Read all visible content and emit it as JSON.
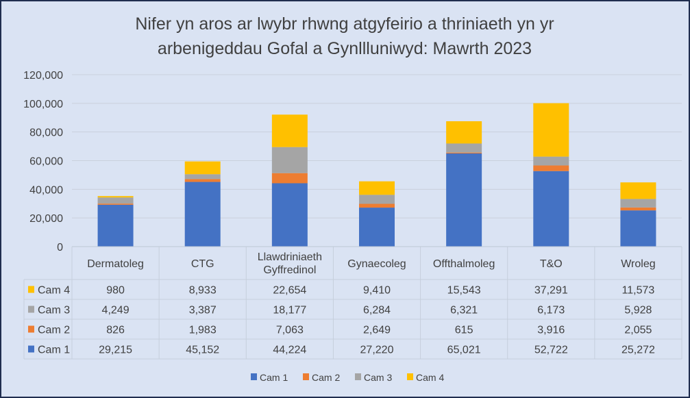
{
  "chart_data": {
    "type": "bar",
    "stacked": true,
    "title_lines": [
      "Nifer yn aros ar lwybr rhwng atgyfeirio a thriniaeth yn yr",
      "arbenigeddau Gofal a Gynllluniwyd: Mawrth 2023"
    ],
    "categories": [
      [
        "Dermatoleg"
      ],
      [
        "CTG"
      ],
      [
        "Llawdriniaeth",
        "Gyffredinol"
      ],
      [
        "Gynaecoleg"
      ],
      [
        "Offthalmoleg"
      ],
      [
        "T&O"
      ],
      [
        "Wroleg"
      ]
    ],
    "yticks": [
      "0",
      "20,000",
      "40,000",
      "60,000",
      "80,000",
      "100,000",
      "120,000"
    ],
    "ylim": [
      0,
      120000
    ],
    "grid": true,
    "legend_position": "bottom",
    "series": [
      {
        "name": "Cam 1",
        "color": "#4472c4",
        "values": [
          29215,
          45152,
          44224,
          27220,
          65021,
          52722,
          25272
        ],
        "labels": [
          "29,215",
          "45,152",
          "44,224",
          "27,220",
          "65,021",
          "52,722",
          "25,272"
        ]
      },
      {
        "name": "Cam 2",
        "color": "#ed7d31",
        "values": [
          826,
          1983,
          7063,
          2649,
          615,
          3916,
          2055
        ],
        "labels": [
          "826",
          "1,983",
          "7,063",
          "2,649",
          "615",
          "3,916",
          "2,055"
        ]
      },
      {
        "name": "Cam 3",
        "color": "#a5a5a5",
        "values": [
          4249,
          3387,
          18177,
          6284,
          6321,
          6173,
          5928
        ],
        "labels": [
          "4,249",
          "3,387",
          "18,177",
          "6,284",
          "6,321",
          "6,173",
          "5,928"
        ]
      },
      {
        "name": "Cam 4",
        "color": "#ffc000",
        "values": [
          980,
          8933,
          22654,
          9410,
          15543,
          37291,
          11573
        ],
        "labels": [
          "980",
          "8,933",
          "22,654",
          "9,410",
          "15,543",
          "37,291",
          "11,573"
        ]
      }
    ],
    "colors": {
      "background": "#dae3f3",
      "border": "#1f2d4e",
      "grid": "#c9d0dc"
    }
  }
}
